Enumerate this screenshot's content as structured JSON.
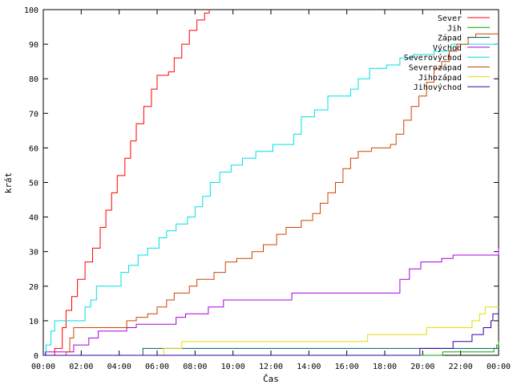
{
  "chart_data": {
    "type": "line",
    "title": "",
    "xlabel": "Čas",
    "ylabel": "krát",
    "xlim": [
      0,
      24
    ],
    "ylim": [
      0,
      100
    ],
    "x_ticks": [
      "00:00",
      "02:00",
      "04:00",
      "06:00",
      "08:00",
      "10:00",
      "12:00",
      "14:00",
      "16:00",
      "18:00",
      "20:00",
      "22:00",
      "00:00"
    ],
    "y_ticks": [
      0,
      10,
      20,
      30,
      40,
      50,
      60,
      70,
      80,
      90,
      100
    ],
    "grid": false,
    "legend": "top-right",
    "series": [
      {
        "name": "Sever",
        "color": "#ff0000",
        "points": [
          [
            0.0,
            0
          ],
          [
            0.6,
            2
          ],
          [
            1.0,
            8
          ],
          [
            1.2,
            13
          ],
          [
            1.5,
            17
          ],
          [
            1.8,
            22
          ],
          [
            2.2,
            27
          ],
          [
            2.6,
            31
          ],
          [
            3.0,
            37
          ],
          [
            3.3,
            42
          ],
          [
            3.6,
            47
          ],
          [
            3.9,
            52
          ],
          [
            4.3,
            57
          ],
          [
            4.6,
            62
          ],
          [
            4.9,
            67
          ],
          [
            5.3,
            72
          ],
          [
            5.7,
            77
          ],
          [
            6.0,
            81
          ],
          [
            6.6,
            82
          ],
          [
            6.9,
            86
          ],
          [
            7.3,
            90
          ],
          [
            7.7,
            94
          ],
          [
            8.1,
            97
          ],
          [
            8.5,
            99
          ],
          [
            8.75,
            100
          ]
        ]
      },
      {
        "name": "Jih",
        "color": "#00aa00",
        "points": [
          [
            0.0,
            0
          ],
          [
            21.0,
            0
          ],
          [
            21.05,
            1
          ],
          [
            23.7,
            1
          ],
          [
            23.75,
            2
          ],
          [
            23.9,
            3
          ],
          [
            24.0,
            4
          ]
        ]
      },
      {
        "name": "Západ",
        "color": "#006060",
        "points": [
          [
            0.0,
            0
          ],
          [
            5.2,
            0
          ],
          [
            5.25,
            2
          ],
          [
            24.0,
            2
          ]
        ]
      },
      {
        "name": "Východ",
        "color": "#aa00dd",
        "points": [
          [
            0.0,
            0
          ],
          [
            0.1,
            1
          ],
          [
            1.5,
            1
          ],
          [
            1.6,
            3
          ],
          [
            2.3,
            3
          ],
          [
            2.4,
            5
          ],
          [
            2.9,
            7
          ],
          [
            4.2,
            7
          ],
          [
            4.4,
            8
          ],
          [
            4.9,
            9
          ],
          [
            6.8,
            9
          ],
          [
            7.0,
            11
          ],
          [
            7.5,
            12
          ],
          [
            8.5,
            12
          ],
          [
            8.7,
            14
          ],
          [
            9.5,
            16
          ],
          [
            13.0,
            16
          ],
          [
            13.1,
            18
          ],
          [
            18.7,
            18
          ],
          [
            18.8,
            22
          ],
          [
            19.3,
            25
          ],
          [
            19.9,
            27
          ],
          [
            21.0,
            28
          ],
          [
            21.6,
            29
          ],
          [
            23.9,
            29
          ],
          [
            24.0,
            31
          ]
        ]
      },
      {
        "name": "Severovýchod",
        "color": "#00e0e0",
        "points": [
          [
            0.0,
            0
          ],
          [
            0.15,
            3
          ],
          [
            0.4,
            7
          ],
          [
            0.6,
            10
          ],
          [
            2.0,
            10
          ],
          [
            2.2,
            14
          ],
          [
            2.5,
            16
          ],
          [
            2.8,
            20
          ],
          [
            3.9,
            20
          ],
          [
            4.1,
            24
          ],
          [
            4.5,
            26
          ],
          [
            5.0,
            29
          ],
          [
            5.5,
            31
          ],
          [
            6.1,
            34
          ],
          [
            6.5,
            36
          ],
          [
            7.0,
            38
          ],
          [
            7.6,
            40
          ],
          [
            8.0,
            43
          ],
          [
            8.4,
            46
          ],
          [
            8.8,
            50
          ],
          [
            9.3,
            53
          ],
          [
            9.9,
            55
          ],
          [
            10.5,
            57
          ],
          [
            11.2,
            59
          ],
          [
            12.1,
            61
          ],
          [
            13.2,
            64
          ],
          [
            13.6,
            69
          ],
          [
            14.3,
            71
          ],
          [
            15.0,
            75
          ],
          [
            16.2,
            77
          ],
          [
            16.6,
            80
          ],
          [
            17.2,
            83
          ],
          [
            18.1,
            84
          ],
          [
            18.8,
            86
          ],
          [
            19.5,
            87
          ],
          [
            20.6,
            88
          ],
          [
            21.5,
            90
          ],
          [
            24.0,
            90
          ]
        ]
      },
      {
        "name": "Severozápad",
        "color": "#cc4400",
        "points": [
          [
            0.0,
            0
          ],
          [
            1.2,
            1
          ],
          [
            1.4,
            5
          ],
          [
            1.6,
            8
          ],
          [
            4.1,
            8
          ],
          [
            4.4,
            10
          ],
          [
            4.9,
            11
          ],
          [
            5.5,
            12
          ],
          [
            6.0,
            14
          ],
          [
            6.5,
            16
          ],
          [
            6.9,
            18
          ],
          [
            7.7,
            20
          ],
          [
            8.1,
            22
          ],
          [
            9.0,
            24
          ],
          [
            9.6,
            27
          ],
          [
            10.2,
            28
          ],
          [
            11.0,
            30
          ],
          [
            11.6,
            32
          ],
          [
            12.3,
            35
          ],
          [
            12.8,
            37
          ],
          [
            13.6,
            39
          ],
          [
            14.2,
            41
          ],
          [
            14.6,
            44
          ],
          [
            15.0,
            47
          ],
          [
            15.4,
            50
          ],
          [
            15.8,
            54
          ],
          [
            16.2,
            57
          ],
          [
            16.6,
            59
          ],
          [
            17.3,
            60
          ],
          [
            18.3,
            61
          ],
          [
            18.6,
            64
          ],
          [
            19.0,
            68
          ],
          [
            19.4,
            72
          ],
          [
            19.8,
            75
          ],
          [
            20.2,
            79
          ],
          [
            20.6,
            83
          ],
          [
            21.0,
            85
          ],
          [
            21.4,
            88
          ],
          [
            21.8,
            90
          ],
          [
            22.4,
            92
          ],
          [
            22.8,
            93
          ],
          [
            24.0,
            93
          ]
        ]
      },
      {
        "name": "Jihozápad",
        "color": "#e0e000",
        "points": [
          [
            0.0,
            0
          ],
          [
            6.3,
            0
          ],
          [
            6.35,
            2
          ],
          [
            7.2,
            2
          ],
          [
            7.3,
            4
          ],
          [
            17.0,
            4
          ],
          [
            17.1,
            6
          ],
          [
            20.1,
            6
          ],
          [
            20.2,
            8
          ],
          [
            22.4,
            8
          ],
          [
            22.6,
            10
          ],
          [
            23.0,
            12
          ],
          [
            23.3,
            14
          ],
          [
            24.0,
            14
          ]
        ]
      },
      {
        "name": "Jihovýchod",
        "color": "#3300aa",
        "points": [
          [
            0.0,
            0
          ],
          [
            19.8,
            0
          ],
          [
            19.85,
            2
          ],
          [
            21.5,
            2
          ],
          [
            21.6,
            4
          ],
          [
            22.5,
            4
          ],
          [
            22.6,
            6
          ],
          [
            23.1,
            6
          ],
          [
            23.2,
            8
          ],
          [
            23.6,
            10
          ],
          [
            23.7,
            12
          ],
          [
            24.0,
            12
          ]
        ]
      }
    ]
  }
}
